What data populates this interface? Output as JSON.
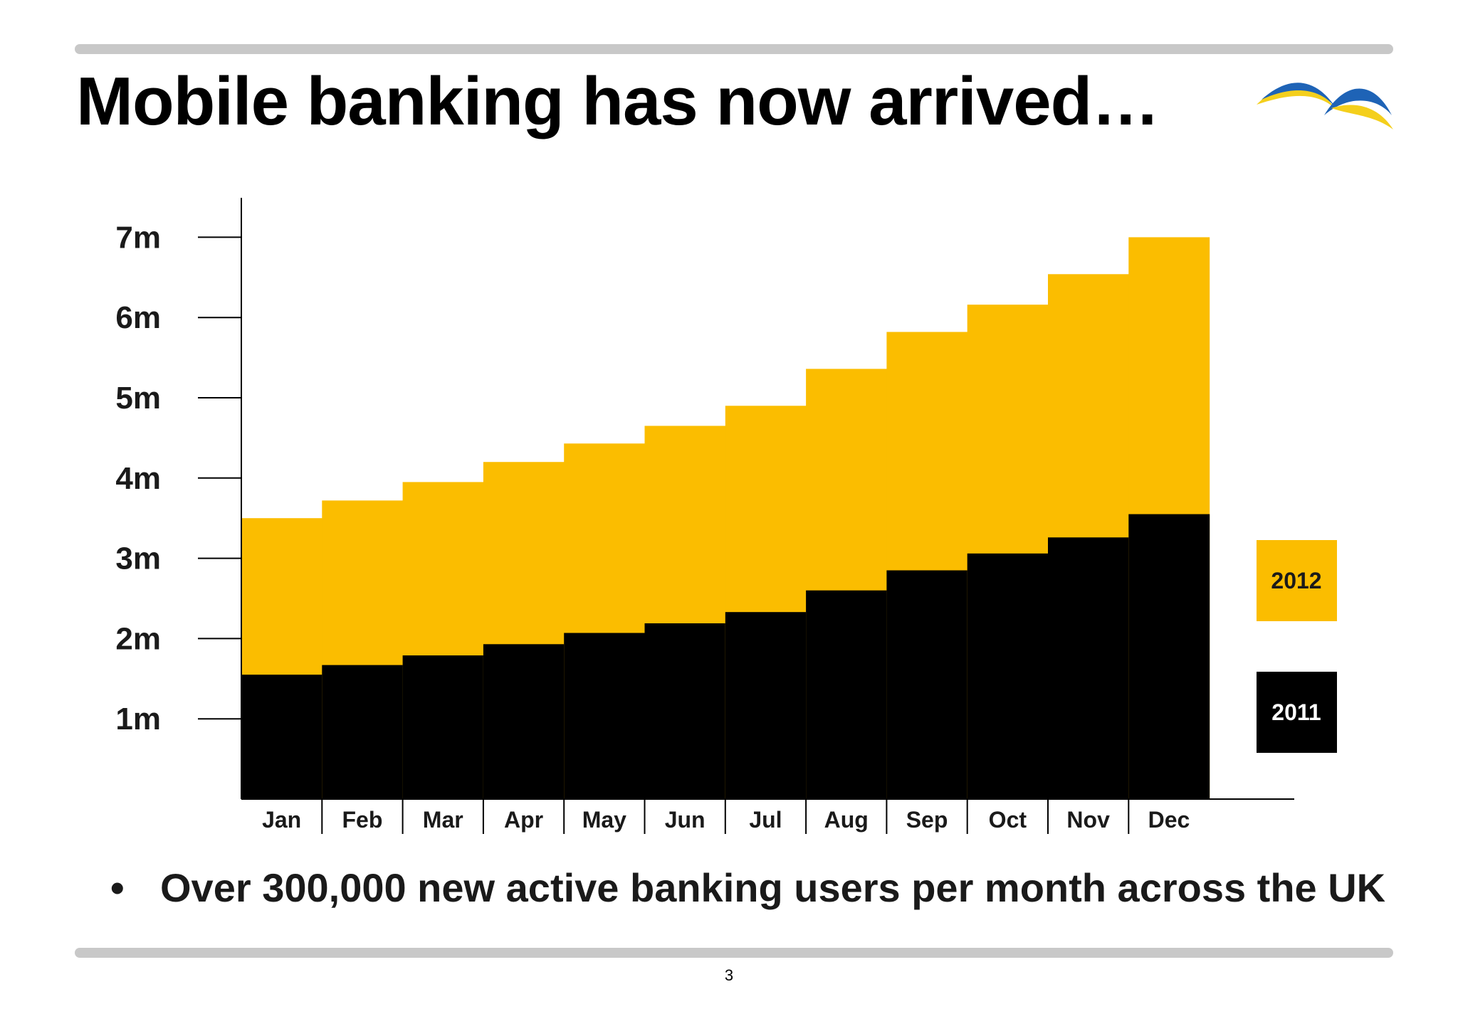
{
  "slide": {
    "title": "Mobile banking has now arrived…",
    "bullet": "Over 300,000 new active banking users per month across the UK",
    "bullet_symbol": "•",
    "page_number": "3",
    "logo_icon": "bird-wings-logo"
  },
  "colors": {
    "rule": "#c8c8c8",
    "series_2012": "#fbbd00",
    "series_2011": "#000000",
    "logo_blue": "#1e63b6",
    "logo_yellow": "#f4cf1c"
  },
  "chart_data": {
    "type": "area",
    "step": true,
    "categories": [
      "Jan",
      "Feb",
      "Mar",
      "Apr",
      "May",
      "Jun",
      "Jul",
      "Aug",
      "Sep",
      "Oct",
      "Nov",
      "Dec"
    ],
    "series": [
      {
        "name": "2011",
        "values": [
          1.55,
          1.67,
          1.79,
          1.93,
          2.07,
          2.19,
          2.33,
          2.6,
          2.85,
          3.06,
          3.26,
          3.55
        ],
        "color": "#000000"
      },
      {
        "name": "2012",
        "values": [
          3.5,
          3.72,
          3.95,
          4.2,
          4.43,
          4.65,
          4.9,
          5.36,
          5.82,
          6.16,
          6.54,
          7.0
        ],
        "color": "#fbbd00"
      }
    ],
    "y_ticks": [
      1,
      2,
      3,
      4,
      5,
      6,
      7
    ],
    "y_tick_labels": [
      "1m",
      "2m",
      "3m",
      "4m",
      "5m",
      "6m",
      "7m"
    ],
    "ylim": [
      0,
      7
    ],
    "legend_position": "right",
    "legend_entries": [
      "2012",
      "2011"
    ],
    "grid": false
  }
}
